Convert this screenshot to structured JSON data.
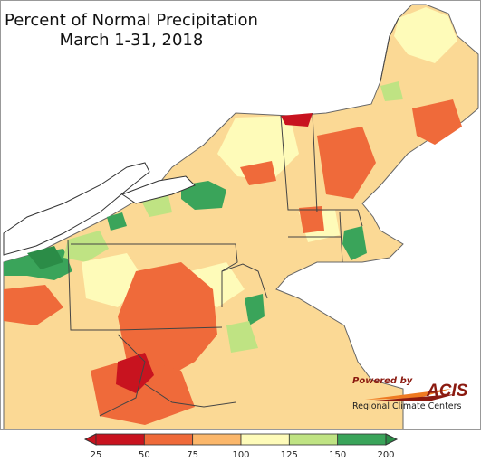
{
  "title": {
    "line1": "Percent of Normal Precipitation",
    "line2": "March 1-31, 2018"
  },
  "legend": {
    "ticks": [
      "25",
      "50",
      "75",
      "100",
      "125",
      "150",
      "200"
    ],
    "bins": [
      {
        "color": "#c8131f"
      },
      {
        "color": "#ef6a3a"
      },
      {
        "color": "#fbb76b"
      },
      {
        "color": "#fefbb9"
      },
      {
        "color": "#bfe383"
      },
      {
        "color": "#3aa45a"
      }
    ],
    "under_color": "#c8131f",
    "over_color": "#2b8c47"
  },
  "logo": {
    "powered_by": "Powered by",
    "name": "ACIS",
    "subtitle": "Regional Climate Centers"
  },
  "colors": {
    "lake": "#ffffff",
    "land_base": "#fbd995",
    "border": "#555555"
  }
}
